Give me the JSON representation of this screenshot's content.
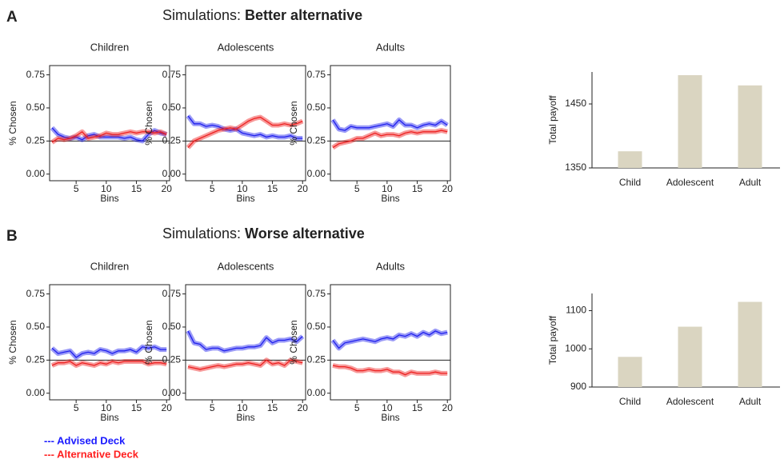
{
  "panels": [
    {
      "label": "A",
      "title": "Simulations:",
      "title_bold": "Better alternative"
    },
    {
      "label": "B",
      "title": "Simulations:",
      "title_bold": "Worse alternative"
    }
  ],
  "legend": [
    {
      "name": "--- Advised Deck",
      "color": "#1a1aff"
    },
    {
      "name": "--- Alternative Deck",
      "color": "#ff2020"
    }
  ],
  "chart_data": [
    {
      "type": "line",
      "title": "Children",
      "x_label": "Bins",
      "y_label": "% Chosen",
      "x": [
        1,
        2,
        3,
        4,
        5,
        6,
        7,
        8,
        9,
        10,
        11,
        12,
        13,
        14,
        15,
        16,
        17,
        18,
        19,
        20
      ],
      "series": [
        {
          "color": "#2020ee",
          "values": [
            0.35,
            0.3,
            0.28,
            0.27,
            0.28,
            0.26,
            0.29,
            0.3,
            0.28,
            0.28,
            0.28,
            0.28,
            0.27,
            0.28,
            0.26,
            0.25,
            0.3,
            0.33,
            0.31,
            0.3
          ]
        },
        {
          "color": "#ee2020",
          "values": [
            0.24,
            0.27,
            0.26,
            0.27,
            0.29,
            0.32,
            0.27,
            0.28,
            0.29,
            0.31,
            0.3,
            0.3,
            0.31,
            0.32,
            0.31,
            0.32,
            0.32,
            0.31,
            0.32,
            0.3
          ]
        }
      ],
      "hline": 0.25,
      "xlim": [
        0.6,
        20.5
      ],
      "xticks": [
        5,
        10,
        15,
        20
      ],
      "ylim": [
        -0.05,
        0.82
      ],
      "yticks": [
        {
          "value": 0,
          "label": "0.00"
        },
        {
          "value": 0.25,
          "label": "0.25"
        },
        {
          "value": 0.5,
          "label": "0.50"
        },
        {
          "value": 0.75,
          "label": "0.75"
        }
      ]
    },
    {
      "type": "line",
      "title": "Adolescents",
      "x_label": "Bins",
      "y_label": "% Chosen",
      "x": [
        1,
        2,
        3,
        4,
        5,
        6,
        7,
        8,
        9,
        10,
        11,
        12,
        13,
        14,
        15,
        16,
        17,
        18,
        19,
        20
      ],
      "series": [
        {
          "color": "#2020ee",
          "values": [
            0.44,
            0.38,
            0.38,
            0.36,
            0.37,
            0.36,
            0.34,
            0.33,
            0.34,
            0.31,
            0.3,
            0.29,
            0.3,
            0.28,
            0.29,
            0.28,
            0.28,
            0.29,
            0.27,
            0.27
          ]
        },
        {
          "color": "#ee2020",
          "values": [
            0.2,
            0.25,
            0.27,
            0.29,
            0.31,
            0.33,
            0.34,
            0.35,
            0.34,
            0.37,
            0.4,
            0.42,
            0.43,
            0.4,
            0.37,
            0.37,
            0.38,
            0.37,
            0.38,
            0.4
          ]
        }
      ],
      "hline": 0.25,
      "xlim": [
        0.6,
        20.5
      ],
      "xticks": [
        5,
        10,
        15,
        20
      ],
      "ylim": [
        -0.05,
        0.82
      ],
      "yticks": [
        {
          "value": 0,
          "label": "0.00"
        },
        {
          "value": 0.25,
          "label": "0.25"
        },
        {
          "value": 0.5,
          "label": "0.50"
        },
        {
          "value": 0.75,
          "label": "0.75"
        }
      ]
    },
    {
      "type": "line",
      "title": "Adults",
      "x_label": "Bins",
      "y_label": "% Chosen",
      "x": [
        1,
        2,
        3,
        4,
        5,
        6,
        7,
        8,
        9,
        10,
        11,
        12,
        13,
        14,
        15,
        16,
        17,
        18,
        19,
        20
      ],
      "series": [
        {
          "color": "#2020ee",
          "values": [
            0.41,
            0.34,
            0.33,
            0.36,
            0.35,
            0.35,
            0.35,
            0.36,
            0.37,
            0.38,
            0.36,
            0.41,
            0.37,
            0.37,
            0.35,
            0.37,
            0.38,
            0.37,
            0.4,
            0.37
          ]
        },
        {
          "color": "#ee2020",
          "values": [
            0.2,
            0.23,
            0.24,
            0.25,
            0.27,
            0.27,
            0.29,
            0.31,
            0.29,
            0.3,
            0.3,
            0.29,
            0.31,
            0.32,
            0.31,
            0.32,
            0.32,
            0.32,
            0.33,
            0.32
          ]
        }
      ],
      "hline": 0.25,
      "xlim": [
        0.6,
        20.5
      ],
      "xticks": [
        5,
        10,
        15,
        20
      ],
      "ylim": [
        -0.05,
        0.82
      ],
      "yticks": [
        {
          "value": 0,
          "label": "0.00"
        },
        {
          "value": 0.25,
          "label": "0.25"
        },
        {
          "value": 0.5,
          "label": "0.50"
        },
        {
          "value": 0.75,
          "label": "0.75"
        }
      ]
    },
    {
      "type": "bar",
      "y_label": "Total payoff",
      "categories": [
        "Child",
        "Adolescent",
        "Adult"
      ],
      "values": [
        1376,
        1495,
        1479
      ],
      "color": "#dad5c1",
      "ylim": [
        1350,
        1500
      ],
      "yticks": [
        1350,
        1450
      ]
    },
    {
      "type": "line",
      "title": "Children",
      "x_label": "Bins",
      "y_label": "% Chosen",
      "x": [
        1,
        2,
        3,
        4,
        5,
        6,
        7,
        8,
        9,
        10,
        11,
        12,
        13,
        14,
        15,
        16,
        17,
        18,
        19,
        20
      ],
      "series": [
        {
          "color": "#2020ee",
          "values": [
            0.34,
            0.3,
            0.31,
            0.32,
            0.27,
            0.3,
            0.31,
            0.3,
            0.33,
            0.32,
            0.3,
            0.32,
            0.32,
            0.33,
            0.31,
            0.35,
            0.34,
            0.35,
            0.33,
            0.33
          ]
        },
        {
          "color": "#ee2020",
          "values": [
            0.21,
            0.23,
            0.23,
            0.24,
            0.21,
            0.23,
            0.22,
            0.21,
            0.23,
            0.22,
            0.24,
            0.23,
            0.24,
            0.24,
            0.24,
            0.24,
            0.22,
            0.23,
            0.23,
            0.22
          ]
        }
      ],
      "hline": 0.25,
      "xlim": [
        0.6,
        20.5
      ],
      "xticks": [
        5,
        10,
        15,
        20
      ],
      "ylim": [
        -0.05,
        0.82
      ],
      "yticks": [
        {
          "value": 0,
          "label": "0.00"
        },
        {
          "value": 0.25,
          "label": "0.25"
        },
        {
          "value": 0.5,
          "label": "0.50"
        },
        {
          "value": 0.75,
          "label": "0.75"
        }
      ]
    },
    {
      "type": "line",
      "title": "Adolescents",
      "x_label": "Bins",
      "y_label": "% Chosen",
      "x": [
        1,
        2,
        3,
        4,
        5,
        6,
        7,
        8,
        9,
        10,
        11,
        12,
        13,
        14,
        15,
        16,
        17,
        18,
        19,
        20
      ],
      "series": [
        {
          "color": "#2020ee",
          "values": [
            0.47,
            0.38,
            0.37,
            0.33,
            0.34,
            0.34,
            0.32,
            0.33,
            0.34,
            0.34,
            0.35,
            0.35,
            0.36,
            0.42,
            0.38,
            0.4,
            0.4,
            0.41,
            0.39,
            0.43
          ]
        },
        {
          "color": "#ee2020",
          "values": [
            0.2,
            0.19,
            0.18,
            0.19,
            0.2,
            0.21,
            0.2,
            0.21,
            0.22,
            0.22,
            0.23,
            0.22,
            0.21,
            0.25,
            0.22,
            0.23,
            0.21,
            0.25,
            0.24,
            0.23
          ]
        }
      ],
      "hline": 0.25,
      "xlim": [
        0.6,
        20.5
      ],
      "xticks": [
        5,
        10,
        15,
        20
      ],
      "ylim": [
        -0.05,
        0.82
      ],
      "yticks": [
        {
          "value": 0,
          "label": "0.00"
        },
        {
          "value": 0.25,
          "label": "0.25"
        },
        {
          "value": 0.5,
          "label": "0.50"
        },
        {
          "value": 0.75,
          "label": "0.75"
        }
      ]
    },
    {
      "type": "line",
      "title": "Adults",
      "x_label": "Bins",
      "y_label": "% Chosen",
      "x": [
        1,
        2,
        3,
        4,
        5,
        6,
        7,
        8,
        9,
        10,
        11,
        12,
        13,
        14,
        15,
        16,
        17,
        18,
        19,
        20
      ],
      "series": [
        {
          "color": "#2020ee",
          "values": [
            0.4,
            0.34,
            0.38,
            0.39,
            0.4,
            0.41,
            0.4,
            0.39,
            0.41,
            0.42,
            0.41,
            0.44,
            0.43,
            0.45,
            0.43,
            0.46,
            0.44,
            0.47,
            0.45,
            0.46
          ]
        },
        {
          "color": "#ee2020",
          "values": [
            0.21,
            0.2,
            0.2,
            0.19,
            0.17,
            0.17,
            0.18,
            0.17,
            0.17,
            0.18,
            0.16,
            0.16,
            0.14,
            0.16,
            0.15,
            0.15,
            0.15,
            0.16,
            0.15,
            0.15
          ]
        }
      ],
      "hline": 0.25,
      "xlim": [
        0.6,
        20.5
      ],
      "xticks": [
        5,
        10,
        15,
        20
      ],
      "ylim": [
        -0.05,
        0.82
      ],
      "yticks": [
        {
          "value": 0,
          "label": "0.00"
        },
        {
          "value": 0.25,
          "label": "0.25"
        },
        {
          "value": 0.5,
          "label": "0.50"
        },
        {
          "value": 0.75,
          "label": "0.75"
        }
      ]
    },
    {
      "type": "bar",
      "y_label": "Total payoff",
      "categories": [
        "Child",
        "Adolescent",
        "Adult"
      ],
      "values": [
        979,
        1058,
        1123
      ],
      "color": "#dad5c1",
      "ylim": [
        900,
        1145
      ],
      "yticks": [
        900,
        1000,
        1100
      ]
    }
  ]
}
